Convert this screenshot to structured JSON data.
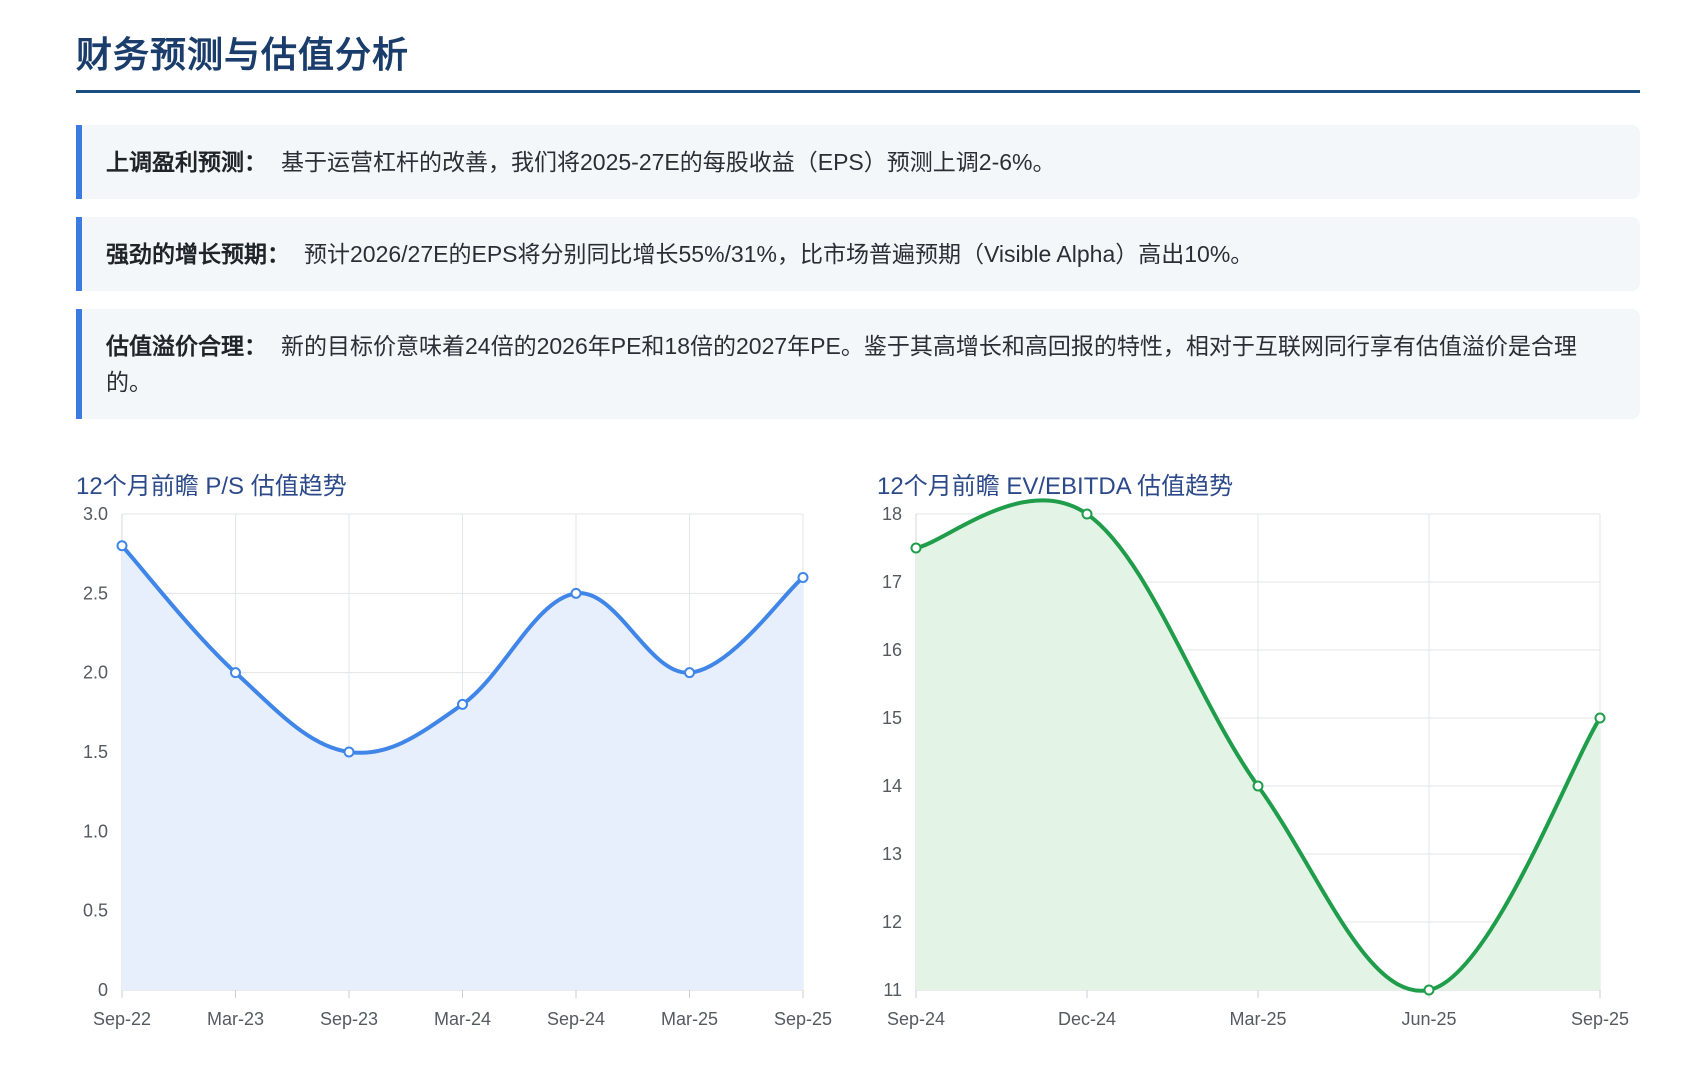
{
  "page": {
    "title": "财务预测与估值分析"
  },
  "callouts": [
    {
      "label": "上调盈利预测：",
      "text": "基于运营杠杆的改善，我们将2025-27E的每股收益（EPS）预测上调2-6%。"
    },
    {
      "label": "强劲的增长预期：",
      "text": "预计2026/27E的EPS将分别同比增长55%/31%，比市场普遍预期（Visible Alpha）高出10%。"
    },
    {
      "label": "估值溢价合理：",
      "text": "新的目标价意味着24倍的2026年PE和18倍的2027年PE。鉴于其高增长和高回报的特性，相对于互联网同行享有估值溢价是合理的。"
    }
  ],
  "colors": {
    "accent_bar": "#3b7be0",
    "ps_line": "#3f86e8",
    "ps_fill": "#e8effc",
    "ev_line": "#1f9d4a",
    "ev_fill": "#e3f3e6",
    "grid": "#e3e6ea"
  },
  "chart_data": [
    {
      "type": "area",
      "title": "12个月前瞻 P/S 估值趋势",
      "categories": [
        "Sep-22",
        "Mar-23",
        "Sep-23",
        "Mar-24",
        "Sep-24",
        "Mar-25",
        "Sep-25"
      ],
      "values": [
        2.8,
        2.0,
        1.5,
        1.8,
        2.5,
        2.0,
        2.6
      ],
      "ylim": [
        0,
        3.0
      ],
      "yticks": [
        "0",
        "0.5",
        "1.0",
        "1.5",
        "2.0",
        "2.5",
        "3.0"
      ],
      "ytick_values": [
        0,
        0.5,
        1.0,
        1.5,
        2.0,
        2.5,
        3.0
      ],
      "grid": true,
      "legend": "none"
    },
    {
      "type": "area",
      "title": "12个月前瞻 EV/EBITDA 估值趋势",
      "categories": [
        "Sep-24",
        "Dec-24",
        "Mar-25",
        "Jun-25",
        "Sep-25"
      ],
      "values": [
        17.5,
        18,
        14,
        11,
        15
      ],
      "ylim": [
        11,
        18
      ],
      "yticks": [
        "11",
        "12",
        "13",
        "14",
        "15",
        "16",
        "17",
        "18"
      ],
      "ytick_values": [
        11,
        12,
        13,
        14,
        15,
        16,
        17,
        18
      ],
      "grid": true,
      "legend": "none"
    }
  ]
}
